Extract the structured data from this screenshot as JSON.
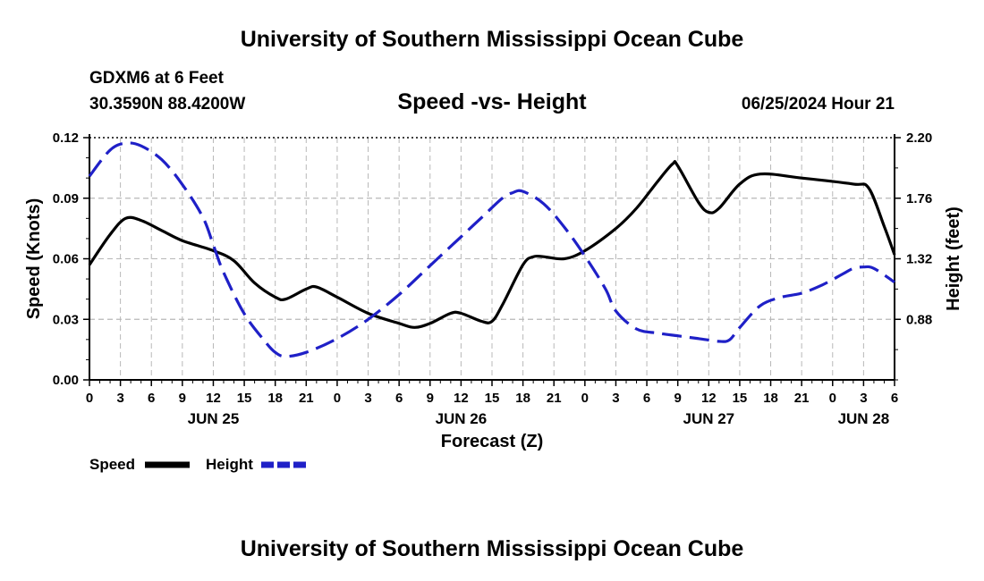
{
  "header": {
    "title": "University of Southern Mississippi Ocean Cube",
    "station": "GDXM6 at 6 Feet",
    "coords": "30.3590N  88.4200W",
    "subtitle": "Speed -vs- Height",
    "datetime": "06/25/2024 Hour 21"
  },
  "footer": {
    "title": "University of Southern Mississippi Ocean Cube"
  },
  "chart_data": {
    "type": "line",
    "xlabel": "Forecast (Z)",
    "ylabel_left": "Speed (Knots)",
    "ylabel_right": "Height (feet)",
    "x_range_hours": [
      0,
      78
    ],
    "x_tick_labels": [
      "0",
      "3",
      "6",
      "9",
      "12",
      "15",
      "18",
      "21",
      "0",
      "3",
      "6",
      "9",
      "12",
      "15",
      "18",
      "21",
      "0",
      "3",
      "6",
      "9",
      "12",
      "15",
      "18",
      "21",
      "0",
      "3",
      "6"
    ],
    "date_labels": [
      {
        "label": "JUN 25",
        "hour": 12
      },
      {
        "label": "JUN 26",
        "hour": 36
      },
      {
        "label": "JUN 27",
        "hour": 60
      },
      {
        "label": "JUN 28",
        "hour": 75
      }
    ],
    "y_left": {
      "range": [
        0,
        0.12
      ],
      "ticks": [
        "0.00",
        "0.03",
        "0.06",
        "0.09",
        "0.12"
      ],
      "tick_values": [
        0,
        0.03,
        0.06,
        0.09,
        0.12
      ]
    },
    "y_right": {
      "range": [
        0.44,
        2.2
      ],
      "ticks": [
        "0.88",
        "1.32",
        "1.76",
        "2.20"
      ],
      "tick_values": [
        0.88,
        1.32,
        1.76,
        2.2
      ]
    },
    "series": [
      {
        "name": "Speed",
        "axis": "left",
        "color": "#000000",
        "dash": "solid",
        "points": [
          [
            0,
            0.057
          ],
          [
            2,
            0.072
          ],
          [
            3.5,
            0.08
          ],
          [
            5,
            0.079
          ],
          [
            7,
            0.074
          ],
          [
            9,
            0.069
          ],
          [
            12,
            0.064
          ],
          [
            14,
            0.059
          ],
          [
            16,
            0.048
          ],
          [
            18,
            0.041
          ],
          [
            19,
            0.04
          ],
          [
            21,
            0.045
          ],
          [
            22,
            0.046
          ],
          [
            24,
            0.041
          ],
          [
            27,
            0.033
          ],
          [
            30,
            0.028
          ],
          [
            31.5,
            0.026
          ],
          [
            33,
            0.028
          ],
          [
            35,
            0.033
          ],
          [
            36,
            0.033
          ],
          [
            38,
            0.029
          ],
          [
            39,
            0.029
          ],
          [
            40,
            0.037
          ],
          [
            42,
            0.057
          ],
          [
            43,
            0.061
          ],
          [
            44,
            0.061
          ],
          [
            46,
            0.06
          ],
          [
            48,
            0.064
          ],
          [
            51,
            0.075
          ],
          [
            53,
            0.085
          ],
          [
            55,
            0.098
          ],
          [
            56.5,
            0.107
          ],
          [
            57,
            0.106
          ],
          [
            59,
            0.088
          ],
          [
            60,
            0.083
          ],
          [
            61,
            0.085
          ],
          [
            63,
            0.097
          ],
          [
            65,
            0.102
          ],
          [
            69,
            0.1
          ],
          [
            74,
            0.097
          ],
          [
            75.5,
            0.095
          ],
          [
            77,
            0.076
          ],
          [
            78,
            0.062
          ]
        ]
      },
      {
        "name": "Height",
        "axis": "right",
        "color": "#1f20c7",
        "dash": "dashed",
        "points": [
          [
            0,
            1.92
          ],
          [
            2,
            2.11
          ],
          [
            3.5,
            2.16
          ],
          [
            5,
            2.14
          ],
          [
            7,
            2.04
          ],
          [
            9,
            1.86
          ],
          [
            11,
            1.62
          ],
          [
            12,
            1.42
          ],
          [
            13,
            1.22
          ],
          [
            15,
            0.92
          ],
          [
            17,
            0.72
          ],
          [
            18,
            0.64
          ],
          [
            19,
            0.61
          ],
          [
            21,
            0.64
          ],
          [
            24,
            0.74
          ],
          [
            27,
            0.88
          ],
          [
            30,
            1.06
          ],
          [
            33,
            1.27
          ],
          [
            36,
            1.48
          ],
          [
            38,
            1.62
          ],
          [
            40,
            1.76
          ],
          [
            41,
            1.8
          ],
          [
            42,
            1.81
          ],
          [
            44,
            1.72
          ],
          [
            46,
            1.55
          ],
          [
            48,
            1.34
          ],
          [
            50,
            1.1
          ],
          [
            51,
            0.94
          ],
          [
            53,
            0.81
          ],
          [
            55,
            0.78
          ],
          [
            57,
            0.76
          ],
          [
            59,
            0.74
          ],
          [
            61,
            0.72
          ],
          [
            62,
            0.73
          ],
          [
            63,
            0.82
          ],
          [
            65,
            0.98
          ],
          [
            67,
            1.04
          ],
          [
            69,
            1.07
          ],
          [
            71,
            1.13
          ],
          [
            73,
            1.21
          ],
          [
            74,
            1.25
          ],
          [
            75,
            1.26
          ],
          [
            76,
            1.25
          ],
          [
            78,
            1.15
          ]
        ]
      }
    ],
    "legend": [
      {
        "label": "Speed",
        "color": "#000000",
        "dash": "solid"
      },
      {
        "label": "Height",
        "color": "#1f20c7",
        "dash": "dashed"
      }
    ]
  }
}
